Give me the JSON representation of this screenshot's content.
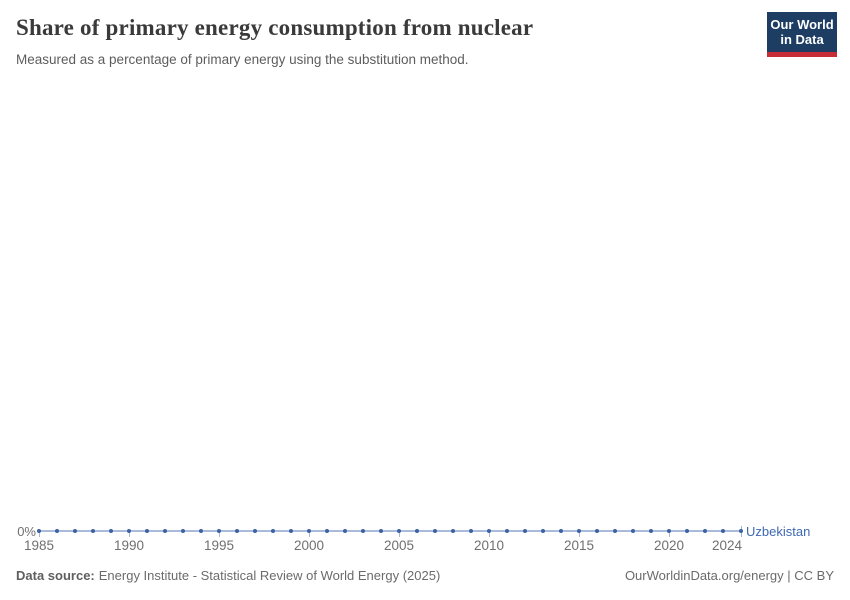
{
  "header": {
    "title": "Share of primary energy consumption from nuclear",
    "subtitle": "Measured as a percentage of primary energy using the substitution method.",
    "logo": {
      "line1": "Our World",
      "line2": "in Data",
      "bg_color": "#1d3d63",
      "accent_color": "#c62d37"
    }
  },
  "chart_data": {
    "type": "line",
    "title": "Share of primary energy consumption from nuclear",
    "subtitle": "Measured as a percentage of primary energy using the substitution method.",
    "x_range": [
      1985,
      2024
    ],
    "x_ticks": [
      1985,
      1990,
      1995,
      2000,
      2005,
      2010,
      2015,
      2020,
      2024
    ],
    "y_axis": {
      "labels": [
        "0%"
      ],
      "min": 0
    },
    "grid": false,
    "legend_position": "end-of-line",
    "series": [
      {
        "name": "Uzbekistan",
        "unit": "%",
        "x": [
          1985,
          1986,
          1987,
          1988,
          1989,
          1990,
          1991,
          1992,
          1993,
          1994,
          1995,
          1996,
          1997,
          1998,
          1999,
          2000,
          2001,
          2002,
          2003,
          2004,
          2005,
          2006,
          2007,
          2008,
          2009,
          2010,
          2011,
          2012,
          2013,
          2014,
          2015,
          2016,
          2017,
          2018,
          2019,
          2020,
          2021,
          2022,
          2023,
          2024
        ],
        "values": [
          0,
          0,
          0,
          0,
          0,
          0,
          0,
          0,
          0,
          0,
          0,
          0,
          0,
          0,
          0,
          0,
          0,
          0,
          0,
          0,
          0,
          0,
          0,
          0,
          0,
          0,
          0,
          0,
          0,
          0,
          0,
          0,
          0,
          0,
          0,
          0,
          0,
          0,
          0,
          0
        ],
        "line_color": "#a9bbd8",
        "marker_color": "#3d62a6",
        "label_color": "#3e68b2"
      }
    ]
  },
  "footer": {
    "source_label": "Data source:",
    "source_text": "Energy Institute - Statistical Review of World Energy (2025)",
    "link_text": "OurWorldinData.org/energy | CC BY"
  }
}
